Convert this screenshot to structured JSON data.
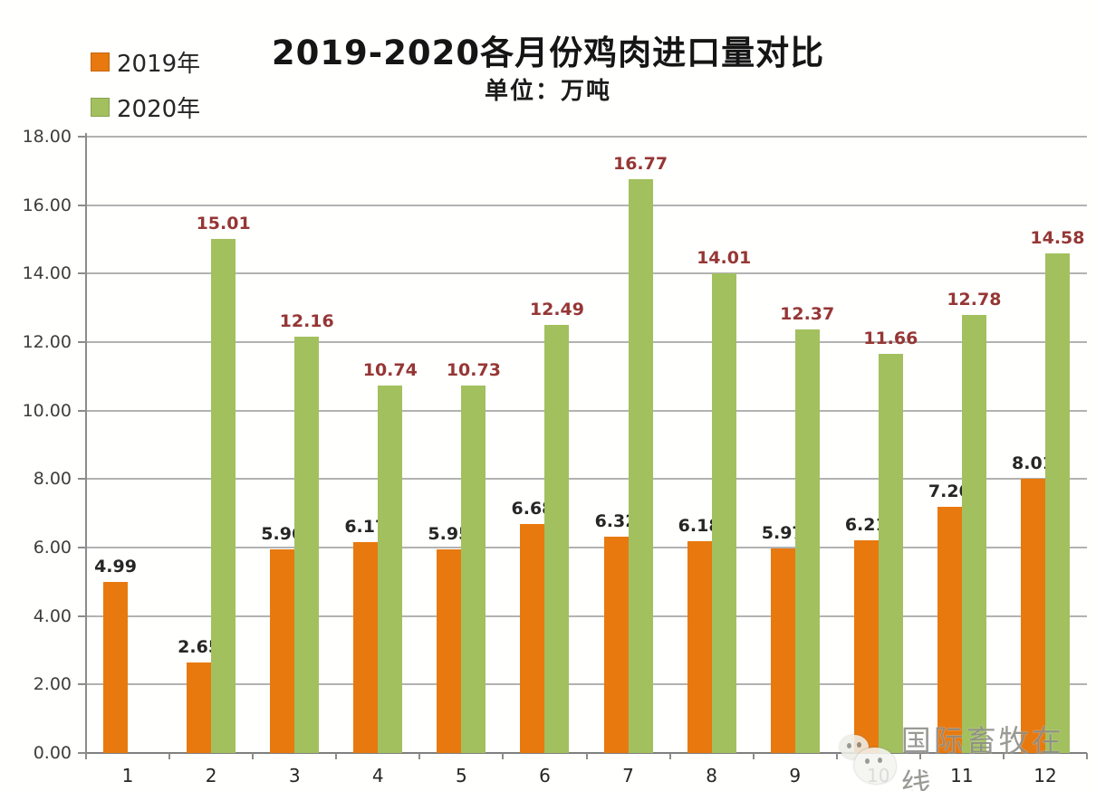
{
  "title": "2019-2020各月份鸡肉进口量对比",
  "subtitle": "单位：万吨",
  "watermark": {
    "text": "国际畜牧在线",
    "icon": "wechat-logo-icon"
  },
  "colors": {
    "bar_2019": "#e8790f",
    "bar_2020": "#a2c05e",
    "label_2019": "#262626",
    "label_2020": "#953735",
    "gridline": "#b2b2b2",
    "axis": "#8c8c8c",
    "watermark_gray": "#8d8d86"
  },
  "chart_data": {
    "type": "bar",
    "title": "2019-2020各月份鸡肉进口量对比",
    "subtitle": "单位：万吨",
    "xlabel": "",
    "ylabel": "",
    "categories": [
      "1",
      "2",
      "3",
      "4",
      "5",
      "6",
      "7",
      "8",
      "9",
      "10",
      "11",
      "12"
    ],
    "series": [
      {
        "name": "2019年",
        "color": "#e8790f",
        "label_color": "#262626",
        "values": [
          4.99,
          2.65,
          5.96,
          6.17,
          5.95,
          6.68,
          6.32,
          6.18,
          5.97,
          6.21,
          7.2,
          8.01
        ]
      },
      {
        "name": "2020年",
        "color": "#a2c05e",
        "label_color": "#953735",
        "values": [
          null,
          15.01,
          12.16,
          10.74,
          10.73,
          12.49,
          16.77,
          14.01,
          12.37,
          11.66,
          12.78,
          14.58
        ]
      }
    ],
    "ylim": [
      0,
      18
    ],
    "ytick_step": 2,
    "ytick_format": "two-decimals",
    "grid": true,
    "legend_position": "top-left",
    "value_labels": true
  }
}
